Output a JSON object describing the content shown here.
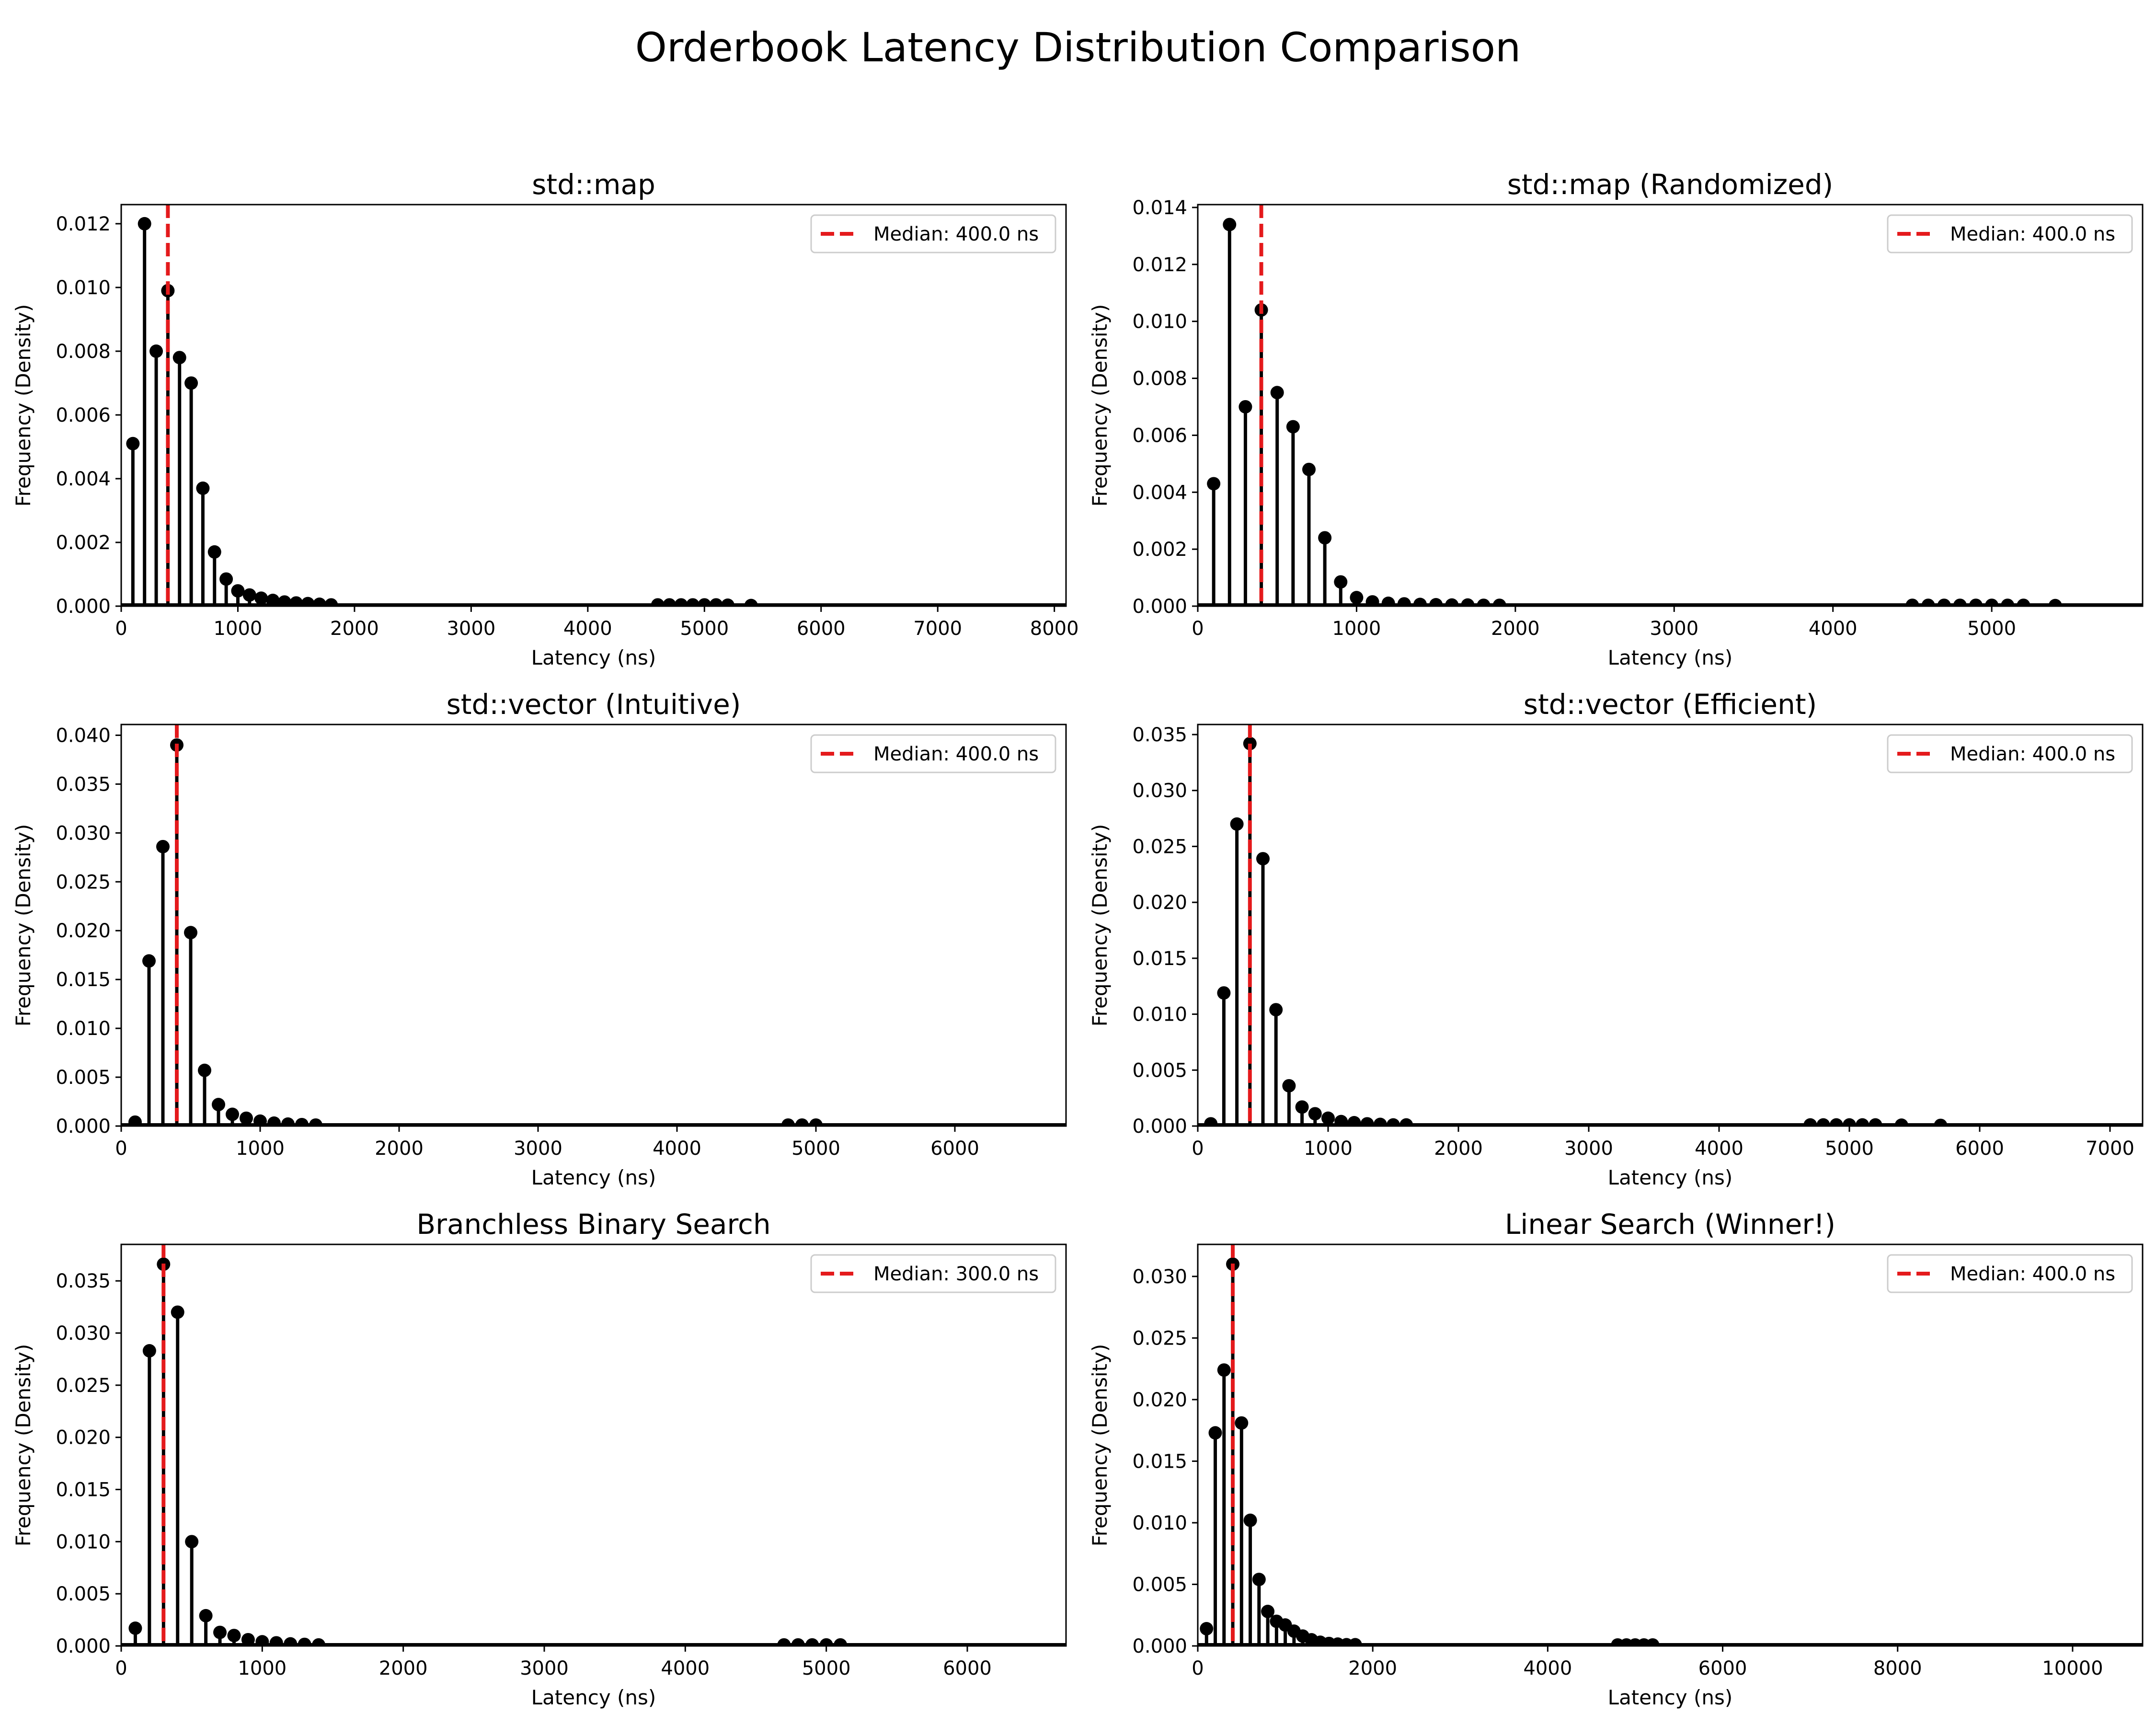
{
  "figure_title": "Orderbook Latency Distribution Comparison",
  "colors": {
    "stem": "#000000",
    "median": "#e41a1c",
    "frame": "#000000",
    "legend_border": "#cccccc"
  },
  "chart_data": [
    {
      "type": "stem",
      "title": "std::map",
      "xlabel": "Latency (ns)",
      "ylabel": "Frequency (Density)",
      "xlim": [
        0,
        8100
      ],
      "ylim": [
        0,
        0.0126
      ],
      "xticks": [
        0,
        1000,
        2000,
        3000,
        4000,
        5000,
        6000,
        7000,
        8000
      ],
      "yticks": [
        0.0,
        0.002,
        0.004,
        0.006,
        0.008,
        0.01,
        0.012
      ],
      "ytick_decimals": 3,
      "median": 400.0,
      "legend": "Median: 400.0 ns",
      "legend_position": "upper right",
      "points": [
        [
          100,
          0.0051
        ],
        [
          200,
          0.012
        ],
        [
          300,
          0.008
        ],
        [
          400,
          0.0099
        ],
        [
          500,
          0.0078
        ],
        [
          600,
          0.007
        ],
        [
          700,
          0.0037
        ],
        [
          800,
          0.0017
        ],
        [
          900,
          0.00085
        ],
        [
          1000,
          0.00048
        ],
        [
          1100,
          0.00035
        ],
        [
          1200,
          0.00025
        ],
        [
          1300,
          0.00018
        ],
        [
          1400,
          0.00013
        ],
        [
          1500,
          0.0001
        ],
        [
          1600,
          8e-05
        ],
        [
          1700,
          6e-05
        ],
        [
          1800,
          4e-05
        ],
        [
          4600,
          4e-05
        ],
        [
          4700,
          4e-05
        ],
        [
          4800,
          4e-05
        ],
        [
          4900,
          4e-05
        ],
        [
          5000,
          4e-05
        ],
        [
          5100,
          4e-05
        ],
        [
          5200,
          3e-05
        ],
        [
          5400,
          2e-05
        ]
      ],
      "baseline_end": 8100
    },
    {
      "type": "stem",
      "title": "std::map (Randomized)",
      "xlabel": "Latency (ns)",
      "ylabel": "Frequency (Density)",
      "xlim": [
        0,
        5950
      ],
      "ylim": [
        0,
        0.0141
      ],
      "xticks": [
        0,
        1000,
        2000,
        3000,
        4000,
        5000
      ],
      "yticks": [
        0.0,
        0.002,
        0.004,
        0.006,
        0.008,
        0.01,
        0.012,
        0.014
      ],
      "ytick_decimals": 3,
      "median": 400.0,
      "legend": "Median: 400.0 ns",
      "legend_position": "upper right",
      "points": [
        [
          100,
          0.0043
        ],
        [
          200,
          0.0134
        ],
        [
          300,
          0.007
        ],
        [
          400,
          0.0104
        ],
        [
          500,
          0.0075
        ],
        [
          600,
          0.0063
        ],
        [
          700,
          0.0048
        ],
        [
          800,
          0.0024
        ],
        [
          900,
          0.00085
        ],
        [
          1000,
          0.0003
        ],
        [
          1100,
          0.00015
        ],
        [
          1200,
          0.0001
        ],
        [
          1300,
          8e-05
        ],
        [
          1400,
          6e-05
        ],
        [
          1500,
          5e-05
        ],
        [
          1600,
          4e-05
        ],
        [
          1700,
          4e-05
        ],
        [
          1800,
          3e-05
        ],
        [
          1900,
          3e-05
        ],
        [
          4500,
          3e-05
        ],
        [
          4600,
          3e-05
        ],
        [
          4700,
          3e-05
        ],
        [
          4800,
          3e-05
        ],
        [
          4900,
          3e-05
        ],
        [
          5000,
          3e-05
        ],
        [
          5100,
          3e-05
        ],
        [
          5200,
          3e-05
        ],
        [
          5400,
          2e-05
        ]
      ],
      "baseline_end": 5950
    },
    {
      "type": "stem",
      "title": "std::vector (Intuitive)",
      "xlabel": "Latency (ns)",
      "ylabel": "Frequency (Density)",
      "xlim": [
        0,
        6800
      ],
      "ylim": [
        0,
        0.0411
      ],
      "xticks": [
        0,
        1000,
        2000,
        3000,
        4000,
        5000,
        6000
      ],
      "yticks": [
        0.0,
        0.005,
        0.01,
        0.015,
        0.02,
        0.025,
        0.03,
        0.035,
        0.04
      ],
      "ytick_decimals": 3,
      "median": 400.0,
      "legend": "Median: 400.0 ns",
      "legend_position": "upper right",
      "points": [
        [
          100,
          0.0004
        ],
        [
          200,
          0.0169
        ],
        [
          300,
          0.0286
        ],
        [
          400,
          0.039
        ],
        [
          500,
          0.0198
        ],
        [
          600,
          0.0057
        ],
        [
          700,
          0.0022
        ],
        [
          800,
          0.0012
        ],
        [
          900,
          0.0008
        ],
        [
          1000,
          0.0005
        ],
        [
          1100,
          0.0003
        ],
        [
          1200,
          0.0002
        ],
        [
          1300,
          0.00015
        ],
        [
          1400,
          0.0001
        ],
        [
          4800,
          0.0001
        ],
        [
          4900,
          0.0001
        ],
        [
          5000,
          0.0001
        ]
      ],
      "baseline_end": 6800
    },
    {
      "type": "stem",
      "title": "std::vector (Efficient)",
      "xlabel": "Latency (ns)",
      "ylabel": "Frequency (Density)",
      "xlim": [
        0,
        7250
      ],
      "ylim": [
        0,
        0.0359
      ],
      "xticks": [
        0,
        1000,
        2000,
        3000,
        4000,
        5000,
        6000,
        7000
      ],
      "yticks": [
        0.0,
        0.005,
        0.01,
        0.015,
        0.02,
        0.025,
        0.03,
        0.035
      ],
      "ytick_decimals": 3,
      "median": 400.0,
      "legend": "Median: 400.0 ns",
      "legend_position": "upper right",
      "points": [
        [
          100,
          0.0002
        ],
        [
          200,
          0.0119
        ],
        [
          300,
          0.027
        ],
        [
          400,
          0.0342
        ],
        [
          500,
          0.0239
        ],
        [
          600,
          0.0104
        ],
        [
          700,
          0.0036
        ],
        [
          800,
          0.0017
        ],
        [
          900,
          0.0011
        ],
        [
          1000,
          0.0007
        ],
        [
          1100,
          0.0004
        ],
        [
          1200,
          0.0003
        ],
        [
          1300,
          0.0002
        ],
        [
          1400,
          0.00015
        ],
        [
          1500,
          0.0001
        ],
        [
          1600,
          0.0001
        ],
        [
          4700,
          0.0001
        ],
        [
          4800,
          0.0001
        ],
        [
          4900,
          0.0001
        ],
        [
          5000,
          0.0001
        ],
        [
          5100,
          0.0001
        ],
        [
          5200,
          0.0001
        ],
        [
          5400,
          8e-05
        ],
        [
          5700,
          6e-05
        ]
      ],
      "baseline_end": 7250
    },
    {
      "type": "stem",
      "title": "Branchless Binary Search",
      "xlabel": "Latency (ns)",
      "ylabel": "Frequency (Density)",
      "xlim": [
        0,
        6700
      ],
      "ylim": [
        0,
        0.0385
      ],
      "xticks": [
        0,
        1000,
        2000,
        3000,
        4000,
        5000,
        6000
      ],
      "yticks": [
        0.0,
        0.005,
        0.01,
        0.015,
        0.02,
        0.025,
        0.03,
        0.035
      ],
      "ytick_decimals": 3,
      "median": 300.0,
      "legend": "Median: 300.0 ns",
      "legend_position": "upper right",
      "points": [
        [
          100,
          0.0017
        ],
        [
          200,
          0.0283
        ],
        [
          300,
          0.0366
        ],
        [
          400,
          0.032
        ],
        [
          500,
          0.01
        ],
        [
          600,
          0.0029
        ],
        [
          700,
          0.0013
        ],
        [
          800,
          0.001
        ],
        [
          900,
          0.0006
        ],
        [
          1000,
          0.0004
        ],
        [
          1100,
          0.0003
        ],
        [
          1200,
          0.0002
        ],
        [
          1300,
          0.00015
        ],
        [
          1400,
          0.0001
        ],
        [
          4700,
          0.0001
        ],
        [
          4800,
          0.0001
        ],
        [
          4900,
          0.0001
        ],
        [
          5000,
          0.0001
        ],
        [
          5100,
          0.0001
        ]
      ],
      "baseline_end": 6700
    },
    {
      "type": "stem",
      "title": "Linear Search (Winner!)",
      "xlabel": "Latency (ns)",
      "ylabel": "Frequency (Density)",
      "xlim": [
        0,
        10800
      ],
      "ylim": [
        0,
        0.0326
      ],
      "xticks": [
        0,
        2000,
        4000,
        6000,
        8000,
        10000
      ],
      "yticks": [
        0.0,
        0.005,
        0.01,
        0.015,
        0.02,
        0.025,
        0.03
      ],
      "ytick_decimals": 3,
      "median": 400.0,
      "legend": "Median: 400.0 ns",
      "legend_position": "upper right",
      "points": [
        [
          100,
          0.0014
        ],
        [
          200,
          0.0173
        ],
        [
          300,
          0.0224
        ],
        [
          400,
          0.031
        ],
        [
          500,
          0.0181
        ],
        [
          600,
          0.0102
        ],
        [
          700,
          0.0054
        ],
        [
          800,
          0.0028
        ],
        [
          900,
          0.002
        ],
        [
          1000,
          0.0017
        ],
        [
          1100,
          0.0012
        ],
        [
          1200,
          0.0008
        ],
        [
          1300,
          0.0005
        ],
        [
          1400,
          0.0003
        ],
        [
          1500,
          0.0002
        ],
        [
          1600,
          0.00015
        ],
        [
          1700,
          0.0001
        ],
        [
          1800,
          0.0001
        ],
        [
          4800,
          8e-05
        ],
        [
          4900,
          8e-05
        ],
        [
          5000,
          8e-05
        ],
        [
          5100,
          8e-05
        ],
        [
          5200,
          8e-05
        ]
      ],
      "baseline_end": 10800
    }
  ]
}
